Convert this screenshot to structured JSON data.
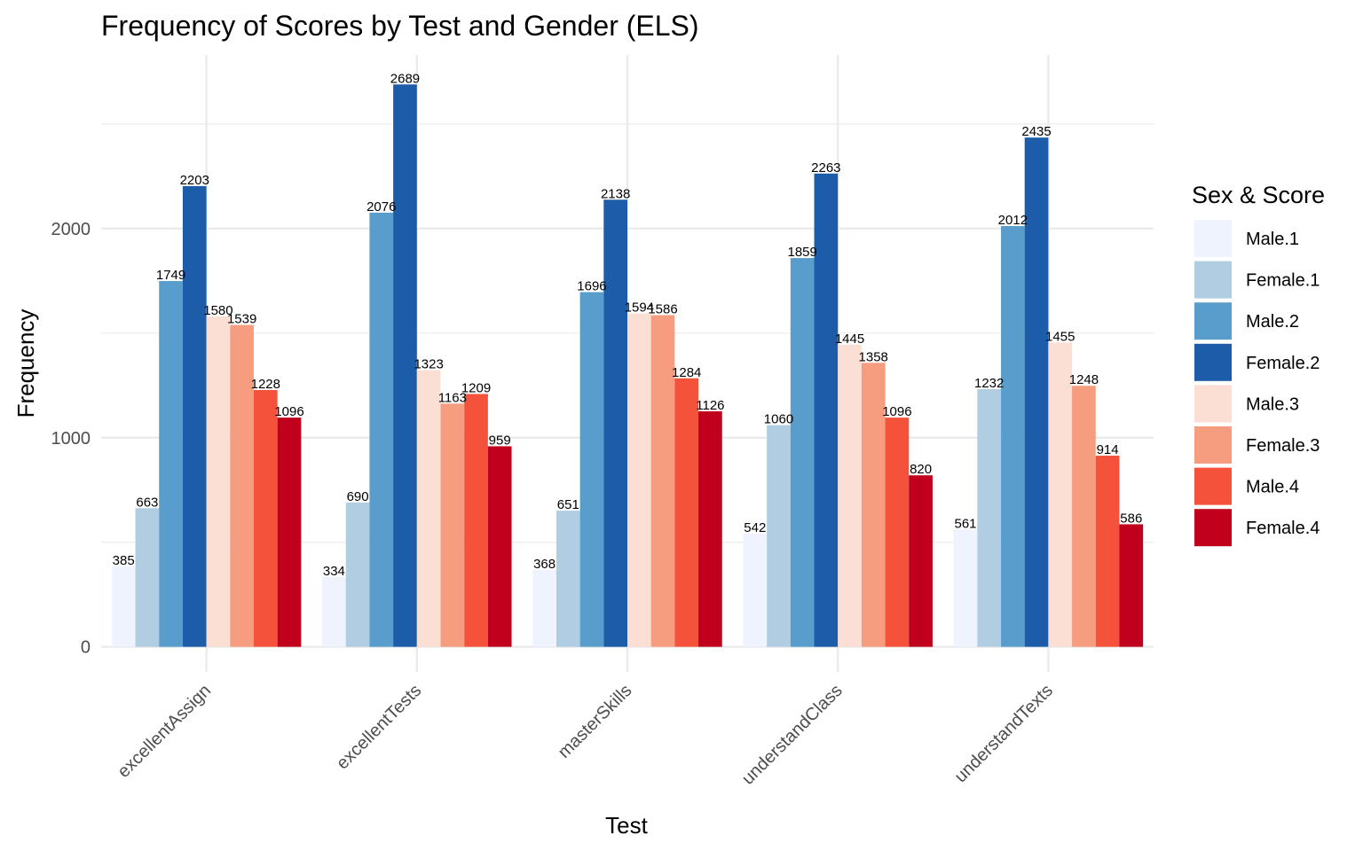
{
  "chart_data": {
    "type": "bar",
    "title": "Frequency of Scores by Test and Gender (ELS)",
    "xlabel": "Test",
    "ylabel": "Frequency",
    "ylim": [
      -120,
      2830
    ],
    "yticks": [
      0,
      1000,
      2000
    ],
    "grid": true,
    "legend": {
      "title": "Sex & Score",
      "position": "right"
    },
    "categories": [
      "excellentAssign",
      "excellentTests",
      "masterSkills",
      "understandClass",
      "understandTexts"
    ],
    "series": [
      {
        "name": "Male.1",
        "color": "#eef3fd",
        "values": [
          385,
          334,
          368,
          542,
          561
        ]
      },
      {
        "name": "Female.1",
        "color": "#b0cde2",
        "values": [
          663,
          690,
          651,
          1060,
          1232
        ]
      },
      {
        "name": "Male.2",
        "color": "#589dcb",
        "values": [
          1749,
          2076,
          1696,
          1859,
          2012
        ]
      },
      {
        "name": "Female.2",
        "color": "#1c5ca8",
        "values": [
          2203,
          2689,
          2138,
          2263,
          2435
        ]
      },
      {
        "name": "Male.3",
        "color": "#fcdfd4",
        "values": [
          1580,
          1323,
          1594,
          1445,
          1455
        ]
      },
      {
        "name": "Female.3",
        "color": "#f69d7f",
        "values": [
          1539,
          1163,
          1586,
          1358,
          1248
        ]
      },
      {
        "name": "Male.4",
        "color": "#f5523c",
        "values": [
          1228,
          1209,
          1284,
          1096,
          914
        ]
      },
      {
        "name": "Female.4",
        "color": "#c0001c",
        "values": [
          1096,
          959,
          1126,
          820,
          586
        ]
      }
    ]
  }
}
